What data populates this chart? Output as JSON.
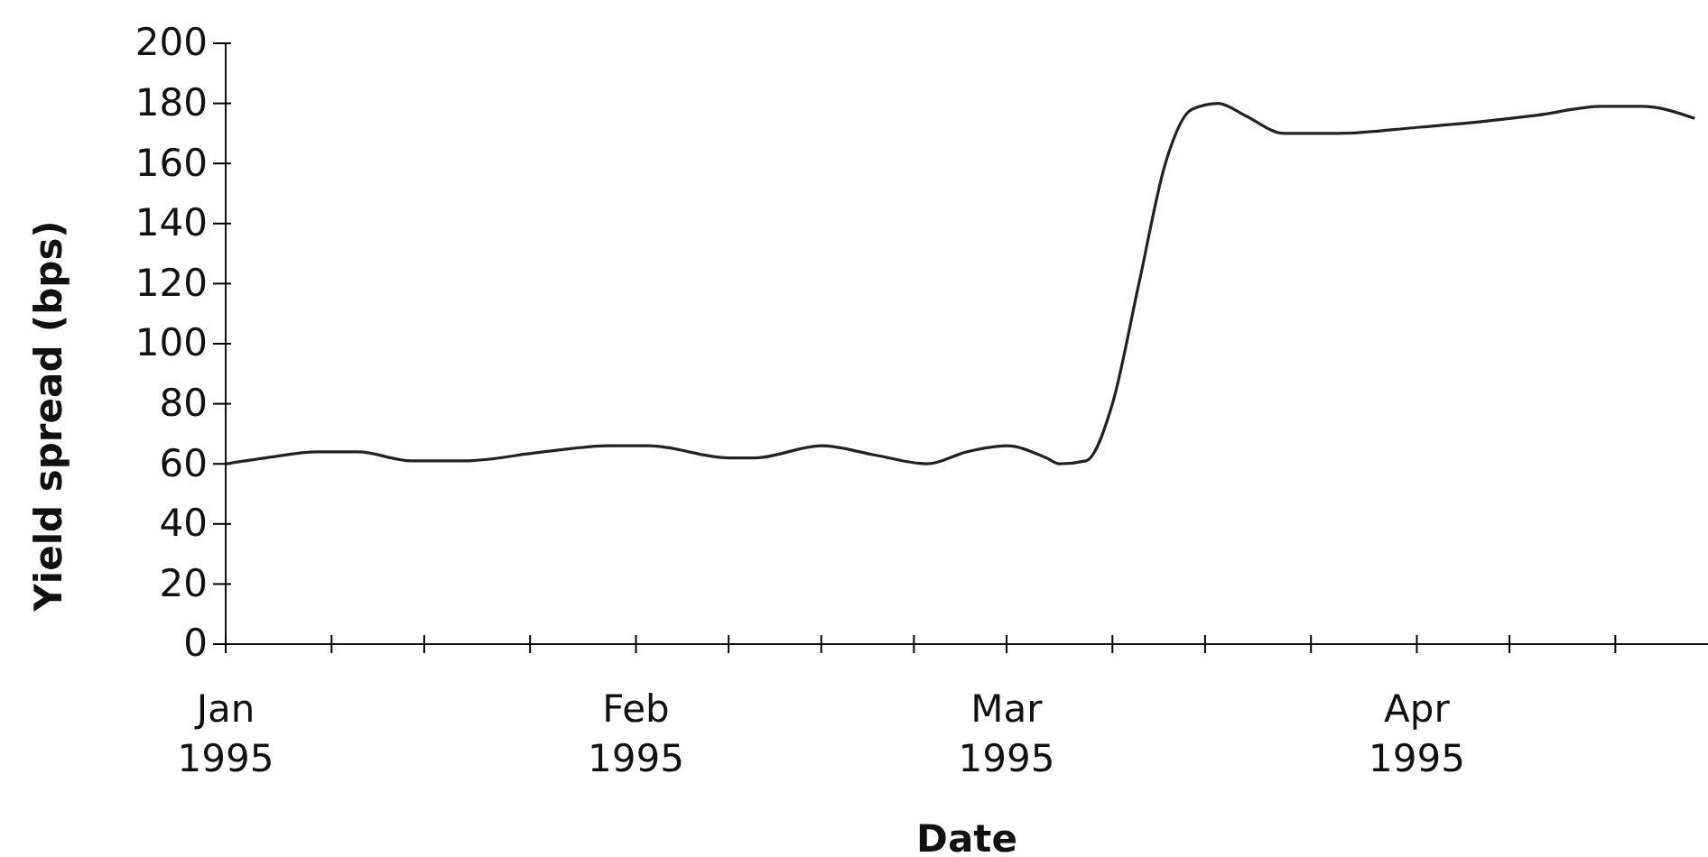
{
  "chart_data": {
    "type": "line",
    "xlabel": "Date",
    "ylabel": "Yield spread (bps)",
    "x": [
      "1995-01-01",
      "1995-01-04",
      "1995-01-08",
      "1995-01-11",
      "1995-01-15",
      "1995-01-19",
      "1995-01-25",
      "1995-01-30",
      "1995-02-02",
      "1995-02-08",
      "1995-02-10",
      "1995-02-15",
      "1995-02-19",
      "1995-02-23",
      "1995-02-26",
      "1995-03-01",
      "1995-03-04",
      "1995-03-05",
      "1995-03-07",
      "1995-03-09",
      "1995-03-11",
      "1995-03-13",
      "1995-03-15",
      "1995-03-17",
      "1995-03-19",
      "1995-03-22",
      "1995-03-26",
      "1995-04-01",
      "1995-04-06",
      "1995-04-10",
      "1995-04-15",
      "1995-04-18",
      "1995-04-22"
    ],
    "series": [
      {
        "color": "#222222",
        "values": [
          60,
          62,
          64,
          64,
          61,
          61,
          64,
          66,
          66,
          62,
          62,
          66,
          63,
          60,
          64,
          66,
          62,
          60,
          61,
          80,
          120,
          160,
          178,
          180,
          176,
          170,
          170,
          172,
          174,
          176,
          179,
          179,
          175
        ]
      }
    ],
    "xlim": [
      "1995-01-01",
      "1995-04-23"
    ],
    "xticks": [
      {
        "value": "1995-01-01",
        "label": "Jan\n1995"
      },
      {
        "value": "1995-01-09",
        "label": null
      },
      {
        "value": "1995-01-16",
        "label": null
      },
      {
        "value": "1995-01-24",
        "label": null
      },
      {
        "value": "1995-02-01",
        "label": "Feb\n1995"
      },
      {
        "value": "1995-02-08",
        "label": null
      },
      {
        "value": "1995-02-15",
        "label": null
      },
      {
        "value": "1995-02-22",
        "label": null
      },
      {
        "value": "1995-03-01",
        "label": "Mar\n1995"
      },
      {
        "value": "1995-03-09",
        "label": null
      },
      {
        "value": "1995-03-16",
        "label": null
      },
      {
        "value": "1995-03-24",
        "label": null
      },
      {
        "value": "1995-04-01",
        "label": "Apr\n1995"
      },
      {
        "value": "1995-04-08",
        "label": null
      },
      {
        "value": "1995-04-16",
        "label": null
      }
    ],
    "ylim": [
      0,
      200
    ],
    "yticks": [
      0,
      20,
      40,
      60,
      80,
      100,
      120,
      140,
      160,
      180,
      200
    ],
    "grid": false,
    "marker": "none",
    "line_style": "solid"
  }
}
